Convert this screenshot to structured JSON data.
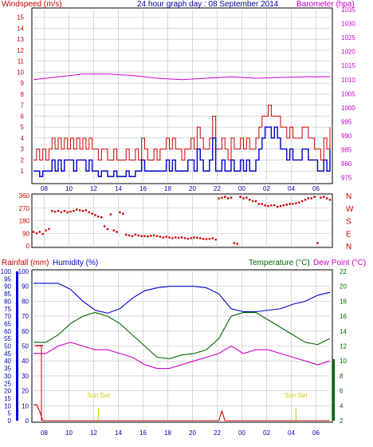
{
  "colors": {
    "wind_avg": "#0000cc",
    "wind_gust": "#cc0000",
    "barometer": "#cc00cc",
    "direction": "#cc0000",
    "humidity": "#0000cc",
    "temperature": "#006600",
    "dewpoint": "#cc00cc",
    "rainfall": "#cc0000",
    "sunset": "#cccc00",
    "grid": "#c0c0c0",
    "frame": "#000000",
    "title_dark": "#0000aa"
  },
  "chart_data": [
    {
      "type": "line",
      "title": "24 hour graph day : 08 September 2014",
      "left_axis_title": "Windspeed (m/s)",
      "right_axis_title": "Barometer (hpa)",
      "left_ticks": [
        "1",
        "2",
        "3",
        "4",
        "5",
        "6",
        "7",
        "8",
        "9",
        "10",
        "11",
        "12",
        "13",
        "14",
        "15"
      ],
      "right_ticks": [
        "975",
        "980",
        "985",
        "990",
        "995",
        "1000",
        "1005",
        "1010",
        "1015",
        "1020",
        "1025",
        "1030",
        "1035"
      ],
      "x_ticks": [
        "08",
        "10",
        "12",
        "14",
        "16",
        "18",
        "20",
        "22",
        "00",
        "02",
        "04",
        "06",
        "08",
        "10",
        "12",
        "14",
        "16",
        "18",
        "20",
        "22",
        "00"
      ],
      "ylim_left": [
        0,
        15.7
      ],
      "ylim_right": [
        973.5,
        1035
      ],
      "series": [
        {
          "name": "Windspeed",
          "key": "wind_gust",
          "x": [
            0,
            1,
            2,
            3,
            4,
            5,
            6,
            7,
            8,
            9,
            10,
            11,
            12,
            13,
            14,
            15,
            16,
            17,
            18,
            19,
            20,
            21,
            22,
            23,
            24,
            25,
            26,
            27,
            28,
            29,
            30,
            31,
            32,
            33,
            34,
            35,
            36,
            37,
            38,
            39,
            40,
            41,
            42,
            43,
            44,
            45,
            46,
            47,
            48,
            49,
            50,
            51,
            52,
            53,
            54,
            55,
            56,
            57,
            58,
            59,
            60,
            61,
            62,
            63,
            64,
            65,
            66,
            67,
            68,
            69,
            70,
            71,
            72,
            73,
            74,
            75,
            76,
            77,
            78,
            79,
            80,
            81,
            82,
            83,
            84,
            85,
            86,
            87,
            88,
            89,
            90,
            91,
            92,
            93,
            94,
            95,
            96
          ],
          "values": [
            2,
            3,
            2,
            3,
            2,
            3,
            4,
            3,
            4,
            3,
            4,
            3,
            4,
            3,
            4,
            3,
            4,
            3,
            4,
            3,
            3,
            2,
            3,
            3,
            2,
            2,
            3,
            2,
            2,
            2,
            3,
            2,
            2,
            3,
            2,
            4,
            3,
            2,
            2,
            3,
            2,
            3,
            3,
            4,
            3,
            4,
            3,
            3,
            2,
            3,
            3,
            4,
            3,
            5,
            4,
            3,
            3,
            4,
            6,
            3,
            3,
            4,
            3,
            2,
            4,
            3,
            3,
            4,
            3,
            4,
            3,
            3,
            4,
            5,
            6,
            6,
            7,
            6,
            6,
            6,
            5,
            5,
            4,
            5,
            4,
            4,
            4,
            5,
            5,
            4,
            4,
            3,
            3,
            2,
            4,
            3,
            5
          ]
        },
        {
          "name": "Windspeed",
          "key": "wind_avg",
          "x": [
            0,
            1,
            2,
            3,
            4,
            5,
            6,
            7,
            8,
            9,
            10,
            11,
            12,
            13,
            14,
            15,
            16,
            17,
            18,
            19,
            20,
            21,
            22,
            23,
            24,
            25,
            26,
            27,
            28,
            29,
            30,
            31,
            32,
            33,
            34,
            35,
            36,
            37,
            38,
            39,
            40,
            41,
            42,
            43,
            44,
            45,
            46,
            47,
            48,
            49,
            50,
            51,
            52,
            53,
            54,
            55,
            56,
            57,
            58,
            59,
            60,
            61,
            62,
            63,
            64,
            65,
            66,
            67,
            68,
            69,
            70,
            71,
            72,
            73,
            74,
            75,
            76,
            77,
            78,
            79,
            80,
            81,
            82,
            83,
            84,
            85,
            86,
            87,
            88,
            89,
            90,
            91,
            92,
            93,
            94,
            95,
            96
          ],
          "values": [
            1,
            1,
            0.5,
            1,
            1,
            1,
            2,
            1,
            2,
            1,
            2,
            2,
            2,
            1,
            2,
            2,
            2,
            1,
            2,
            1,
            1,
            0.5,
            1,
            1,
            0.5,
            0.5,
            1,
            0.5,
            0.5,
            0.5,
            1,
            0.5,
            0.5,
            1,
            1,
            2,
            1,
            1,
            1,
            1,
            1,
            1,
            1,
            2,
            1,
            2,
            1,
            1,
            1,
            1,
            2,
            2,
            1,
            3,
            2,
            1,
            1,
            2,
            4,
            1,
            1,
            2,
            1,
            1,
            2,
            1,
            1,
            2,
            1,
            2,
            1,
            1,
            2,
            3,
            4,
            5,
            5,
            4,
            5,
            4,
            3,
            3,
            2,
            3,
            2,
            2,
            2,
            3,
            3,
            2,
            2,
            2,
            1,
            1,
            2,
            1,
            3
          ]
        },
        {
          "name": "Barometer",
          "key": "barometer",
          "axis": "right",
          "x": [
            0,
            8,
            16,
            24,
            32,
            40,
            48,
            56,
            64,
            72,
            80,
            88,
            96
          ],
          "values": [
            1010,
            1011,
            1012,
            1012,
            1011.5,
            1010.5,
            1010,
            1010.5,
            1011,
            1010.5,
            1010.8,
            1011,
            1011
          ]
        }
      ]
    },
    {
      "type": "scatter",
      "title": "Wind direction",
      "left_ticks": [
        "360",
        "270",
        "180",
        "90",
        "0"
      ],
      "right_ticks": [
        "N",
        "W",
        "S",
        "E",
        "N"
      ],
      "ylim": [
        0,
        360
      ],
      "series": [
        {
          "name": "Wind direction",
          "key": "direction",
          "x": [
            0,
            1,
            2,
            3,
            4,
            5,
            6,
            7,
            8,
            9,
            10,
            11,
            12,
            13,
            14,
            15,
            16,
            17,
            18,
            19,
            20,
            21,
            22,
            23,
            24,
            25,
            26,
            27,
            28,
            29,
            30,
            31,
            32,
            33,
            34,
            35,
            36,
            37,
            38,
            39,
            40,
            41,
            42,
            43,
            44,
            45,
            46,
            47,
            48,
            49,
            50,
            51,
            52,
            53,
            54,
            55,
            56,
            57,
            58,
            59,
            60,
            61,
            62,
            63,
            64,
            65,
            66,
            67,
            68,
            69,
            70,
            71,
            72,
            73,
            74,
            75,
            76,
            77,
            78,
            79,
            80,
            81,
            82,
            83,
            84,
            85,
            86,
            87,
            88,
            89,
            90,
            91,
            92,
            93,
            94,
            95,
            96
          ],
          "values": [
            100,
            90,
            100,
            85,
            110,
            120,
            250,
            245,
            250,
            240,
            250,
            240,
            245,
            250,
            260,
            255,
            250,
            255,
            240,
            230,
            220,
            210,
            205,
            140,
            120,
            225,
            110,
            100,
            240,
            230,
            80,
            75,
            70,
            80,
            75,
            70,
            70,
            68,
            72,
            75,
            70,
            65,
            60,
            65,
            60,
            55,
            60,
            58,
            60,
            55,
            50,
            55,
            60,
            58,
            55,
            50,
            48,
            50,
            55,
            45,
            340,
            345,
            350,
            340,
            345,
            20,
            15,
            350,
            340,
            345,
            330,
            320,
            320,
            300,
            300,
            290,
            285,
            290,
            290,
            280,
            285,
            290,
            295,
            300,
            300,
            305,
            310,
            320,
            330,
            340,
            340,
            350,
            20,
            345,
            350,
            340,
            330
          ]
        }
      ]
    },
    {
      "type": "line",
      "left_title_a": "Rainfall (mm)",
      "left_title_b": "Humidity (%)",
      "right_title_a": "Temperature (°C)",
      "right_title_b": "Dew Point (°C)",
      "rain_ticks": [
        "0",
        "5",
        "10",
        "15",
        "20",
        "25",
        "30",
        "35",
        "40",
        "45",
        "50",
        "55",
        "60",
        "65",
        "70",
        "75",
        "80",
        "85",
        "90",
        "95",
        "100"
      ],
      "humidity_ticks": [
        "0",
        "10",
        "20",
        "30",
        "40",
        "50",
        "60",
        "70",
        "80",
        "90",
        "100"
      ],
      "temp_ticks": [
        "2",
        "4",
        "6",
        "8",
        "10",
        "12",
        "14",
        "16",
        "18",
        "20",
        "22"
      ],
      "x_ticks": [
        "08",
        "10",
        "12",
        "14",
        "16",
        "18",
        "20",
        "22",
        "00",
        "02",
        "04",
        "06",
        "08",
        "10",
        "12",
        "14",
        "16",
        "18",
        "20",
        "22",
        "00"
      ],
      "ylim_humidity": [
        0,
        100
      ],
      "ylim_temp": [
        2,
        22
      ],
      "annotations": [
        "Sun Set",
        "Sun Set"
      ],
      "series": [
        {
          "name": "Humidity",
          "key": "humidity",
          "x": [
            0,
            8,
            12,
            16,
            20,
            24,
            28,
            32,
            36,
            40,
            44,
            48,
            52,
            56,
            60,
            64,
            68,
            72,
            76,
            80,
            84,
            88,
            92,
            96
          ],
          "values": [
            92,
            92,
            88,
            80,
            74,
            72,
            75,
            82,
            87,
            89,
            90,
            90,
            90,
            89,
            85,
            75,
            73,
            73,
            74,
            75,
            78,
            80,
            84,
            86
          ]
        },
        {
          "name": "Temperature",
          "key": "temperature",
          "x": [
            0,
            4,
            8,
            12,
            16,
            20,
            24,
            28,
            32,
            36,
            40,
            44,
            48,
            52,
            56,
            60,
            64,
            68,
            72,
            76,
            80,
            84,
            88,
            92,
            96
          ],
          "values": [
            12.5,
            12.5,
            13.5,
            15,
            16,
            16.5,
            16,
            15,
            13.5,
            12,
            10.5,
            10.3,
            10.8,
            11,
            11.5,
            13,
            16,
            16.5,
            16.5,
            15.5,
            14.5,
            13.5,
            12.5,
            12.2,
            13
          ]
        },
        {
          "name": "Dew Point",
          "key": "dewpoint",
          "x": [
            0,
            4,
            8,
            12,
            16,
            20,
            24,
            28,
            32,
            36,
            40,
            44,
            48,
            52,
            56,
            60,
            64,
            68,
            72,
            76,
            80,
            84,
            88,
            92,
            96
          ],
          "values": [
            11,
            11,
            12,
            12.5,
            12,
            11.5,
            11.5,
            11,
            10.5,
            9.5,
            9,
            9,
            9.5,
            10,
            10.5,
            11,
            12,
            11,
            11.5,
            11.5,
            11,
            10.5,
            10,
            9.5,
            10
          ]
        },
        {
          "name": "Rainfall",
          "key": "rainfall",
          "x": [
            0,
            1,
            2,
            3,
            4,
            5,
            6,
            60,
            61,
            62,
            96
          ],
          "values": [
            0.5,
            0.5,
            0.3,
            0,
            0,
            0,
            0,
            0,
            0.3,
            0,
            0
          ]
        }
      ]
    }
  ]
}
